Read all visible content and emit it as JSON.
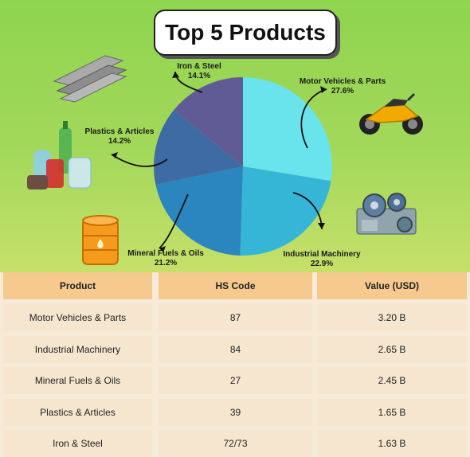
{
  "title": "Top 5 Products",
  "chart_data": {
    "type": "pie",
    "slices": [
      {
        "label": "Motor Vehicles & Parts",
        "value": 27.6,
        "display": "27.6%",
        "color": "#69e4ec"
      },
      {
        "label": "Industrial Machinery",
        "value": 22.9,
        "display": "22.9%",
        "color": "#36b6d6"
      },
      {
        "label": "Mineral Fuels & Oils",
        "value": 21.2,
        "display": "21.2%",
        "color": "#2b86c0"
      },
      {
        "label": "Plastics & Articles",
        "value": 14.2,
        "display": "14.2%",
        "color": "#3e6ba3"
      },
      {
        "label": "Iron & Steel",
        "value": 14.1,
        "display": "14.1%",
        "color": "#605b95"
      }
    ]
  },
  "table": {
    "headers": [
      "Product",
      "HS Code",
      "Value (USD)"
    ],
    "rows": [
      [
        "Motor Vehicles & Parts",
        "87",
        "3.20 B"
      ],
      [
        "Industrial Machinery",
        "84",
        "2.65 B"
      ],
      [
        "Mineral Fuels & Oils",
        "27",
        "2.45 B"
      ],
      [
        "Plastics & Articles",
        "39",
        "1.65 B"
      ],
      [
        "Iron & Steel",
        "72/73",
        "1.63 B"
      ]
    ]
  },
  "icons": [
    "steel-beams-icon",
    "plastic-bottles-icon",
    "oil-barrel-icon",
    "motorcycle-icon",
    "machinery-gears-icon"
  ]
}
